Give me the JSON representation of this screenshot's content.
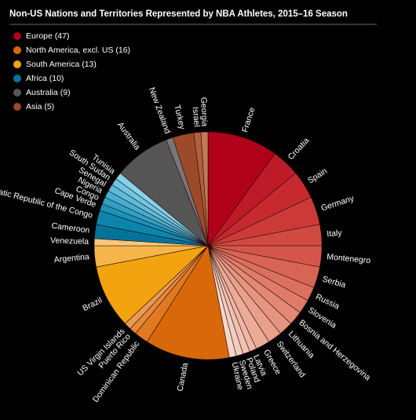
{
  "chart_data": {
    "type": "pie",
    "title": "Non-US Nations and Territories Represented by NBA Athletes, 2015–16 Season",
    "legend": [
      {
        "label": "Europe (47)",
        "color": "#b0001a"
      },
      {
        "label": "North America, excl. US  (16)",
        "color": "#d9680b"
      },
      {
        "label": "South America (13)",
        "color": "#f2a30f"
      },
      {
        "label": "Africa (10)",
        "color": "#00739a"
      },
      {
        "label": "Australia (9)",
        "color": "#555555"
      },
      {
        "label": "Asia (5)",
        "color": "#9b4a2a"
      }
    ],
    "categories": [
      "France",
      "Croatia",
      "Spain",
      "Germany",
      "Italy",
      "Montenegro",
      "Serbia",
      "Russia",
      "Slovenia",
      "Bosnia and Herzegovina",
      "Lithuania",
      "Switzerland",
      "Greece",
      "Latvia",
      "Poland",
      "Sweden",
      "Ukraine",
      "Canada",
      "Dominican Republic",
      "Puerto Rico",
      "US Virgin Islands",
      "Brazil",
      "Argentina",
      "Venezuela",
      "Cameroon",
      "Democratic Republic of the Congo",
      "Cape Verde",
      "Congo",
      "Nigeria",
      "Senegal",
      "South Sudan",
      "Tunisia",
      "Australia",
      "New Zealand",
      "Turkey",
      "Israel",
      "Georgia"
    ],
    "values": [
      10,
      4,
      4,
      4,
      3,
      3,
      3,
      2,
      2,
      2,
      2,
      2,
      2,
      1,
      1,
      1,
      1,
      12,
      2,
      1,
      1,
      9,
      3,
      1,
      2,
      2,
      1,
      1,
      1,
      1,
      1,
      1,
      8,
      1,
      3,
      1,
      1
    ],
    "colors": [
      "#b0001a",
      "#bf1a27",
      "#c62a2f",
      "#cc3a38",
      "#d14a40",
      "#d4564a",
      "#d86454",
      "#dc705e",
      "#df7c69",
      "#e28874",
      "#e5947f",
      "#e8a08b",
      "#ebab97",
      "#eeb7a4",
      "#f0c2b1",
      "#f2ccbd",
      "#f4d6ca",
      "#d9680b",
      "#e07a22",
      "#e58a3a",
      "#e99a55",
      "#f2a30f",
      "#f5b54a",
      "#f7c77a",
      "#00739a",
      "#0a86ad",
      "#1a93ba",
      "#2fa1c6",
      "#45afd1",
      "#5bbcdc",
      "#70c7e4",
      "#85d2eb",
      "#555555",
      "#777777",
      "#9b4a2a",
      "#b0603c",
      "#c07a55"
    ]
  }
}
